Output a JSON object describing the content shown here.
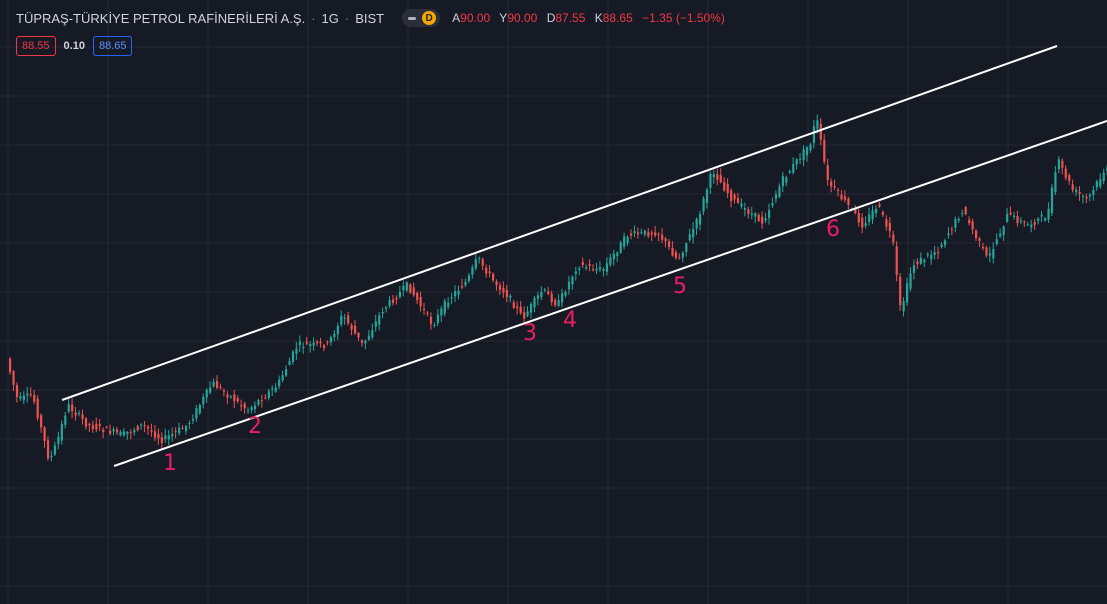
{
  "header": {
    "symbol": "TÜPRAŞ-TÜRKİYE PETROL RAFİNERİLERİ A.Ş.",
    "separator": "·",
    "timeframe": "1G",
    "exchange": "BIST",
    "badge": "D",
    "ohlc": {
      "open_label": "A",
      "open": "90.00",
      "high_label": "Y",
      "high": "90.00",
      "low_label": "D",
      "low": "87.55",
      "close_label": "K",
      "close": "88.65",
      "change": "−1.35 (−1.50%)"
    }
  },
  "quote": {
    "bid": "88.55",
    "spread": "0.10",
    "ask": "88.65"
  },
  "colors": {
    "background": "#161a25",
    "grid": "#242834",
    "up": "#26a69a",
    "down": "#ef5350",
    "channel": "#ffffff",
    "markers": "#e91e63"
  },
  "chart_data": {
    "type": "candlestick",
    "annotation": "ascending channel (two parallel trendlines)",
    "markers": [
      "1",
      "2",
      "3",
      "4",
      "5",
      "6"
    ],
    "last_close": 88.65
  }
}
